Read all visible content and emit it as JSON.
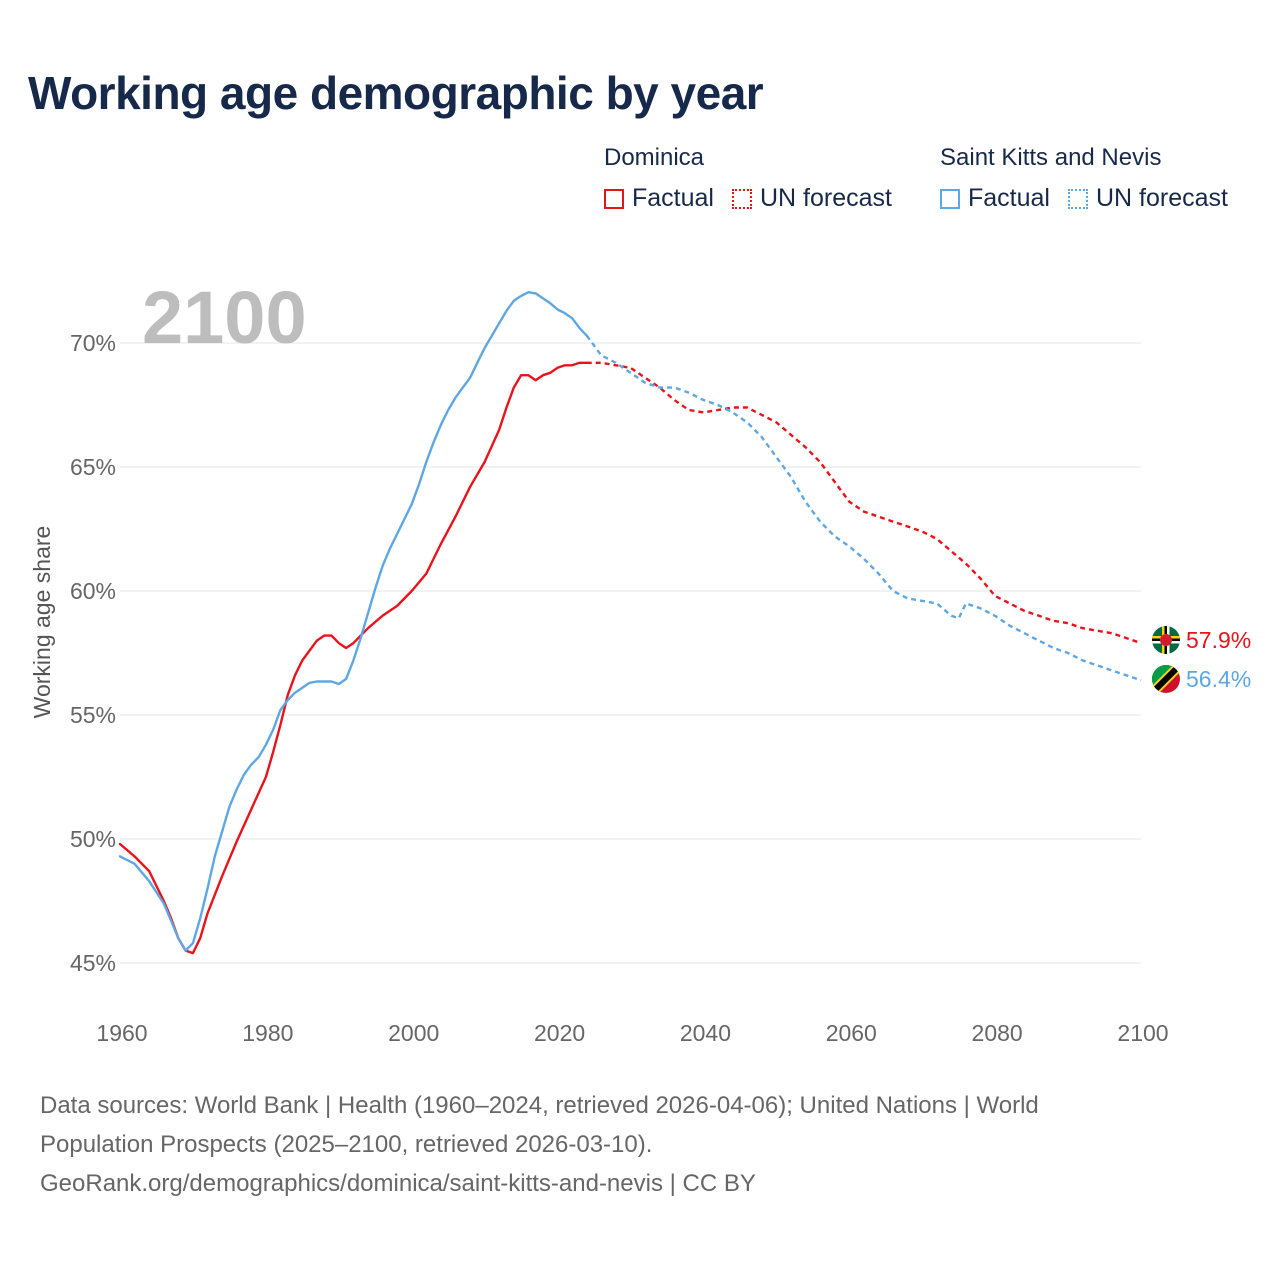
{
  "chart_data": {
    "type": "line",
    "title": "Working age demographic by year",
    "ylabel": "Working age share",
    "xlabel": "",
    "year_label": "2100",
    "xlim": [
      1960,
      2100
    ],
    "ylim": [
      45,
      70
    ],
    "x_ticks": [
      1960,
      1980,
      2000,
      2020,
      2040,
      2060,
      2080,
      2100
    ],
    "x_tick_labels": [
      "1960",
      "1980",
      "2000",
      "2020",
      "2040",
      "2060",
      "2080",
      "2100"
    ],
    "y_ticks": [
      45,
      50,
      55,
      60,
      65,
      70
    ],
    "y_tick_labels": [
      "45%",
      "50%",
      "55%",
      "60%",
      "65%",
      "70%"
    ],
    "grid": true,
    "legend_position": "top-right",
    "legend": {
      "groups": [
        {
          "name": "Dominica",
          "factual_label": "Factual",
          "forecast_label": "UN forecast",
          "color": "#e8141b"
        },
        {
          "name": "Saint Kitts and Nevis",
          "factual_label": "Factual",
          "forecast_label": "UN forecast",
          "color": "#5ea7e3"
        }
      ]
    },
    "series": [
      {
        "name": "Dominica",
        "color": "#e8141b",
        "end_label": "57.9%",
        "factual": [
          [
            1960,
            49.8
          ],
          [
            1962,
            49.3
          ],
          [
            1964,
            48.7
          ],
          [
            1966,
            47.5
          ],
          [
            1967,
            46.8
          ],
          [
            1968,
            46.0
          ],
          [
            1969,
            45.5
          ],
          [
            1970,
            45.4
          ],
          [
            1971,
            46.0
          ],
          [
            1972,
            47.0
          ],
          [
            1974,
            48.5
          ],
          [
            1976,
            49.9
          ],
          [
            1978,
            51.2
          ],
          [
            1980,
            52.5
          ],
          [
            1981,
            53.5
          ],
          [
            1982,
            54.6
          ],
          [
            1983,
            55.8
          ],
          [
            1984,
            56.6
          ],
          [
            1985,
            57.2
          ],
          [
            1986,
            57.6
          ],
          [
            1987,
            58.0
          ],
          [
            1988,
            58.2
          ],
          [
            1989,
            58.2
          ],
          [
            1990,
            57.9
          ],
          [
            1991,
            57.7
          ],
          [
            1992,
            57.9
          ],
          [
            1993,
            58.2
          ],
          [
            1994,
            58.5
          ],
          [
            1996,
            59.0
          ],
          [
            1998,
            59.4
          ],
          [
            2000,
            60.0
          ],
          [
            2002,
            60.7
          ],
          [
            2004,
            61.9
          ],
          [
            2006,
            63.0
          ],
          [
            2008,
            64.2
          ],
          [
            2010,
            65.2
          ],
          [
            2012,
            66.5
          ],
          [
            2013,
            67.4
          ],
          [
            2014,
            68.2
          ],
          [
            2015,
            68.7
          ],
          [
            2016,
            68.7
          ],
          [
            2017,
            68.5
          ],
          [
            2018,
            68.7
          ],
          [
            2019,
            68.8
          ],
          [
            2020,
            69.0
          ],
          [
            2021,
            69.1
          ],
          [
            2022,
            69.1
          ],
          [
            2023,
            69.2
          ],
          [
            2024,
            69.2
          ]
        ],
        "forecast": [
          [
            2024,
            69.2
          ],
          [
            2026,
            69.2
          ],
          [
            2028,
            69.1
          ],
          [
            2030,
            69.0
          ],
          [
            2032,
            68.6
          ],
          [
            2034,
            68.2
          ],
          [
            2036,
            67.7
          ],
          [
            2038,
            67.3
          ],
          [
            2040,
            67.2
          ],
          [
            2042,
            67.3
          ],
          [
            2044,
            67.4
          ],
          [
            2046,
            67.4
          ],
          [
            2048,
            67.1
          ],
          [
            2050,
            66.8
          ],
          [
            2052,
            66.3
          ],
          [
            2054,
            65.8
          ],
          [
            2056,
            65.2
          ],
          [
            2058,
            64.4
          ],
          [
            2060,
            63.6
          ],
          [
            2062,
            63.2
          ],
          [
            2064,
            63.0
          ],
          [
            2066,
            62.8
          ],
          [
            2068,
            62.6
          ],
          [
            2070,
            62.4
          ],
          [
            2072,
            62.1
          ],
          [
            2074,
            61.6
          ],
          [
            2076,
            61.1
          ],
          [
            2078,
            60.5
          ],
          [
            2080,
            59.8
          ],
          [
            2082,
            59.5
          ],
          [
            2084,
            59.2
          ],
          [
            2086,
            59.0
          ],
          [
            2088,
            58.8
          ],
          [
            2090,
            58.7
          ],
          [
            2092,
            58.5
          ],
          [
            2094,
            58.4
          ],
          [
            2096,
            58.3
          ],
          [
            2098,
            58.1
          ],
          [
            2100,
            57.9
          ]
        ]
      },
      {
        "name": "Saint Kitts and Nevis",
        "color": "#5ea7e3",
        "end_label": "56.4%",
        "factual": [
          [
            1960,
            49.3
          ],
          [
            1962,
            49.0
          ],
          [
            1964,
            48.3
          ],
          [
            1966,
            47.4
          ],
          [
            1967,
            46.7
          ],
          [
            1968,
            46.0
          ],
          [
            1969,
            45.5
          ],
          [
            1970,
            45.8
          ],
          [
            1971,
            46.8
          ],
          [
            1972,
            48.0
          ],
          [
            1973,
            49.3
          ],
          [
            1974,
            50.3
          ],
          [
            1975,
            51.3
          ],
          [
            1976,
            52.0
          ],
          [
            1977,
            52.6
          ],
          [
            1978,
            53.0
          ],
          [
            1979,
            53.3
          ],
          [
            1980,
            53.8
          ],
          [
            1981,
            54.4
          ],
          [
            1982,
            55.2
          ],
          [
            1983,
            55.6
          ],
          [
            1984,
            55.9
          ],
          [
            1985,
            56.1
          ],
          [
            1986,
            56.3
          ],
          [
            1987,
            56.35
          ],
          [
            1988,
            56.35
          ],
          [
            1989,
            56.35
          ],
          [
            1990,
            56.25
          ],
          [
            1991,
            56.45
          ],
          [
            1992,
            57.2
          ],
          [
            1993,
            58.1
          ],
          [
            1994,
            59.1
          ],
          [
            1995,
            60.1
          ],
          [
            1996,
            61.0
          ],
          [
            1997,
            61.7
          ],
          [
            1998,
            62.3
          ],
          [
            1999,
            62.9
          ],
          [
            2000,
            63.5
          ],
          [
            2001,
            64.3
          ],
          [
            2002,
            65.2
          ],
          [
            2003,
            66.0
          ],
          [
            2004,
            66.7
          ],
          [
            2005,
            67.3
          ],
          [
            2006,
            67.8
          ],
          [
            2007,
            68.2
          ],
          [
            2008,
            68.6
          ],
          [
            2009,
            69.2
          ],
          [
            2010,
            69.8
          ],
          [
            2011,
            70.3
          ],
          [
            2012,
            70.8
          ],
          [
            2013,
            71.3
          ],
          [
            2014,
            71.7
          ],
          [
            2015,
            71.9
          ],
          [
            2016,
            72.05
          ],
          [
            2017,
            72.0
          ],
          [
            2018,
            71.8
          ],
          [
            2019,
            71.6
          ],
          [
            2020,
            71.35
          ],
          [
            2021,
            71.2
          ],
          [
            2022,
            71.0
          ],
          [
            2023,
            70.6
          ],
          [
            2024,
            70.3
          ]
        ],
        "forecast": [
          [
            2024,
            70.3
          ],
          [
            2026,
            69.5
          ],
          [
            2028,
            69.2
          ],
          [
            2030,
            68.8
          ],
          [
            2032,
            68.4
          ],
          [
            2034,
            68.2
          ],
          [
            2036,
            68.2
          ],
          [
            2038,
            68.0
          ],
          [
            2040,
            67.7
          ],
          [
            2042,
            67.5
          ],
          [
            2044,
            67.2
          ],
          [
            2046,
            66.8
          ],
          [
            2048,
            66.2
          ],
          [
            2050,
            65.4
          ],
          [
            2052,
            64.6
          ],
          [
            2054,
            63.6
          ],
          [
            2056,
            62.8
          ],
          [
            2058,
            62.2
          ],
          [
            2060,
            61.8
          ],
          [
            2062,
            61.3
          ],
          [
            2064,
            60.7
          ],
          [
            2066,
            60.0
          ],
          [
            2068,
            59.7
          ],
          [
            2070,
            59.6
          ],
          [
            2072,
            59.5
          ],
          [
            2074,
            59.0
          ],
          [
            2075,
            58.9
          ],
          [
            2076,
            59.5
          ],
          [
            2078,
            59.3
          ],
          [
            2080,
            59.0
          ],
          [
            2082,
            58.6
          ],
          [
            2084,
            58.3
          ],
          [
            2086,
            58.0
          ],
          [
            2088,
            57.7
          ],
          [
            2090,
            57.5
          ],
          [
            2092,
            57.2
          ],
          [
            2094,
            57.0
          ],
          [
            2096,
            56.8
          ],
          [
            2098,
            56.6
          ],
          [
            2100,
            56.4
          ]
        ]
      }
    ]
  },
  "footer": {
    "line1": "Data sources: World Bank | Health (1960–2024, retrieved 2026-04-06); United Nations | World",
    "line2": "Population Prospects (2025–2100, retrieved 2026-03-10).",
    "line3": "GeoRank.org/demographics/dominica/saint-kitts-and-nevis | CC BY"
  },
  "icons": {
    "dominica_marker": "dominica-flag-icon",
    "skn_marker": "saint-kitts-and-nevis-flag-icon"
  }
}
